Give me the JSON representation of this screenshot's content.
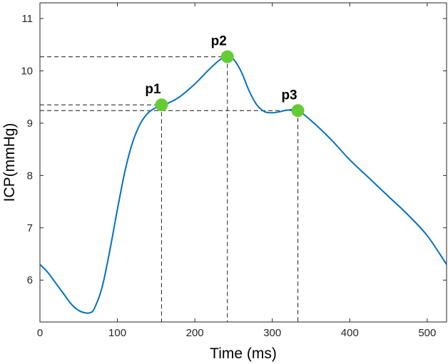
{
  "chart_data": {
    "type": "line",
    "xlabel": "Time (ms)",
    "ylabel": "ICP(mmHg)",
    "xlim": [
      0,
      525
    ],
    "ylim": [
      5.2,
      11.3
    ],
    "xticks": [
      0,
      100,
      200,
      300,
      400,
      500
    ],
    "yticks": [
      6,
      7,
      8,
      9,
      10,
      11
    ],
    "grid": false,
    "colors": {
      "line": "#0072BD",
      "marker": "#66CC33",
      "reference": "#333333",
      "axis": "#262626"
    },
    "series": [
      {
        "x": [
          0,
          10,
          20,
          30,
          40,
          50,
          60,
          65,
          70,
          80,
          90,
          100,
          110,
          120,
          130,
          140,
          150,
          157,
          165,
          180,
          200,
          220,
          235,
          242,
          250,
          260,
          270,
          280,
          290,
          300,
          310,
          320,
          333,
          350,
          375,
          400,
          425,
          450,
          475,
          500,
          525
        ],
        "y": [
          6.3,
          6.15,
          5.95,
          5.75,
          5.55,
          5.42,
          5.37,
          5.38,
          5.45,
          5.85,
          6.55,
          7.35,
          8.1,
          8.65,
          9.0,
          9.2,
          9.3,
          9.35,
          9.38,
          9.5,
          9.75,
          10.05,
          10.24,
          10.27,
          10.22,
          9.98,
          9.62,
          9.35,
          9.22,
          9.2,
          9.22,
          9.25,
          9.24,
          9.05,
          8.7,
          8.3,
          7.95,
          7.6,
          7.25,
          6.85,
          6.3
        ]
      }
    ],
    "points": [
      {
        "label": "p1",
        "x": 157,
        "y": 9.35
      },
      {
        "label": "p2",
        "x": 242,
        "y": 10.27
      },
      {
        "label": "p3",
        "x": 333,
        "y": 9.24
      }
    ]
  }
}
